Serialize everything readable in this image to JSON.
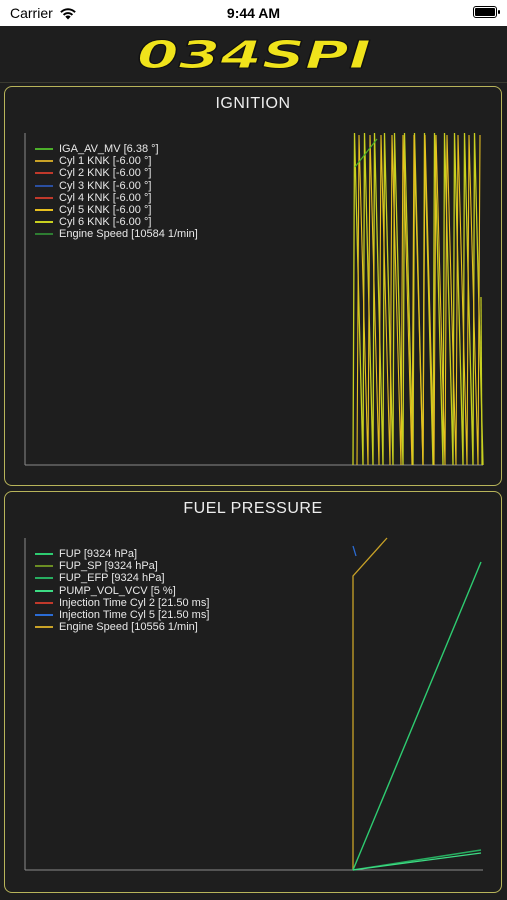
{
  "status_bar": {
    "carrier": "Carrier",
    "time": "9:44 AM",
    "wifi_icon": "wifi-icon",
    "battery_icon": "battery-icon"
  },
  "header": {
    "logo_text": "034SPI",
    "logo_color": "#f0e31b"
  },
  "panels": [
    {
      "title": "IGNITION",
      "legend": [
        {
          "label": "IGA_AV_MV [6.38 °]",
          "color": "#4caf2a"
        },
        {
          "label": "Cyl 1 KNK [-6.00 °]",
          "color": "#c9a227"
        },
        {
          "label": "Cyl 2 KNK [-6.00 °]",
          "color": "#c0392b"
        },
        {
          "label": "Cyl 3 KNK [-6.00 °]",
          "color": "#2b4fa0"
        },
        {
          "label": "Cyl 4 KNK [-6.00 °]",
          "color": "#c0392b"
        },
        {
          "label": "Cyl 5 KNK [-6.00 °]",
          "color": "#e8c020"
        },
        {
          "label": "Cyl 6 KNK [-6.00 °]",
          "color": "#c8d020"
        },
        {
          "label": "Engine Speed [10584 1/min]",
          "color": "#2e7d32"
        }
      ]
    },
    {
      "title": "FUEL PRESSURE",
      "legend": [
        {
          "label": "FUP [9324 hPa]",
          "color": "#2ecc71"
        },
        {
          "label": "FUP_SP [9324 hPa]",
          "color": "#6b8e23"
        },
        {
          "label": "FUP_EFP [9324 hPa]",
          "color": "#27ae60"
        },
        {
          "label": "PUMP_VOL_VCV [5 %]",
          "color": "#3ddc84"
        },
        {
          "label": "Injection Time Cyl 2 [21.50 ms]",
          "color": "#c0392b"
        },
        {
          "label": "Injection Time Cyl 5 [21.50 ms]",
          "color": "#2b6cd4"
        },
        {
          "label": "Engine Speed [10556 1/min]",
          "color": "#c9a227"
        }
      ]
    }
  ]
}
